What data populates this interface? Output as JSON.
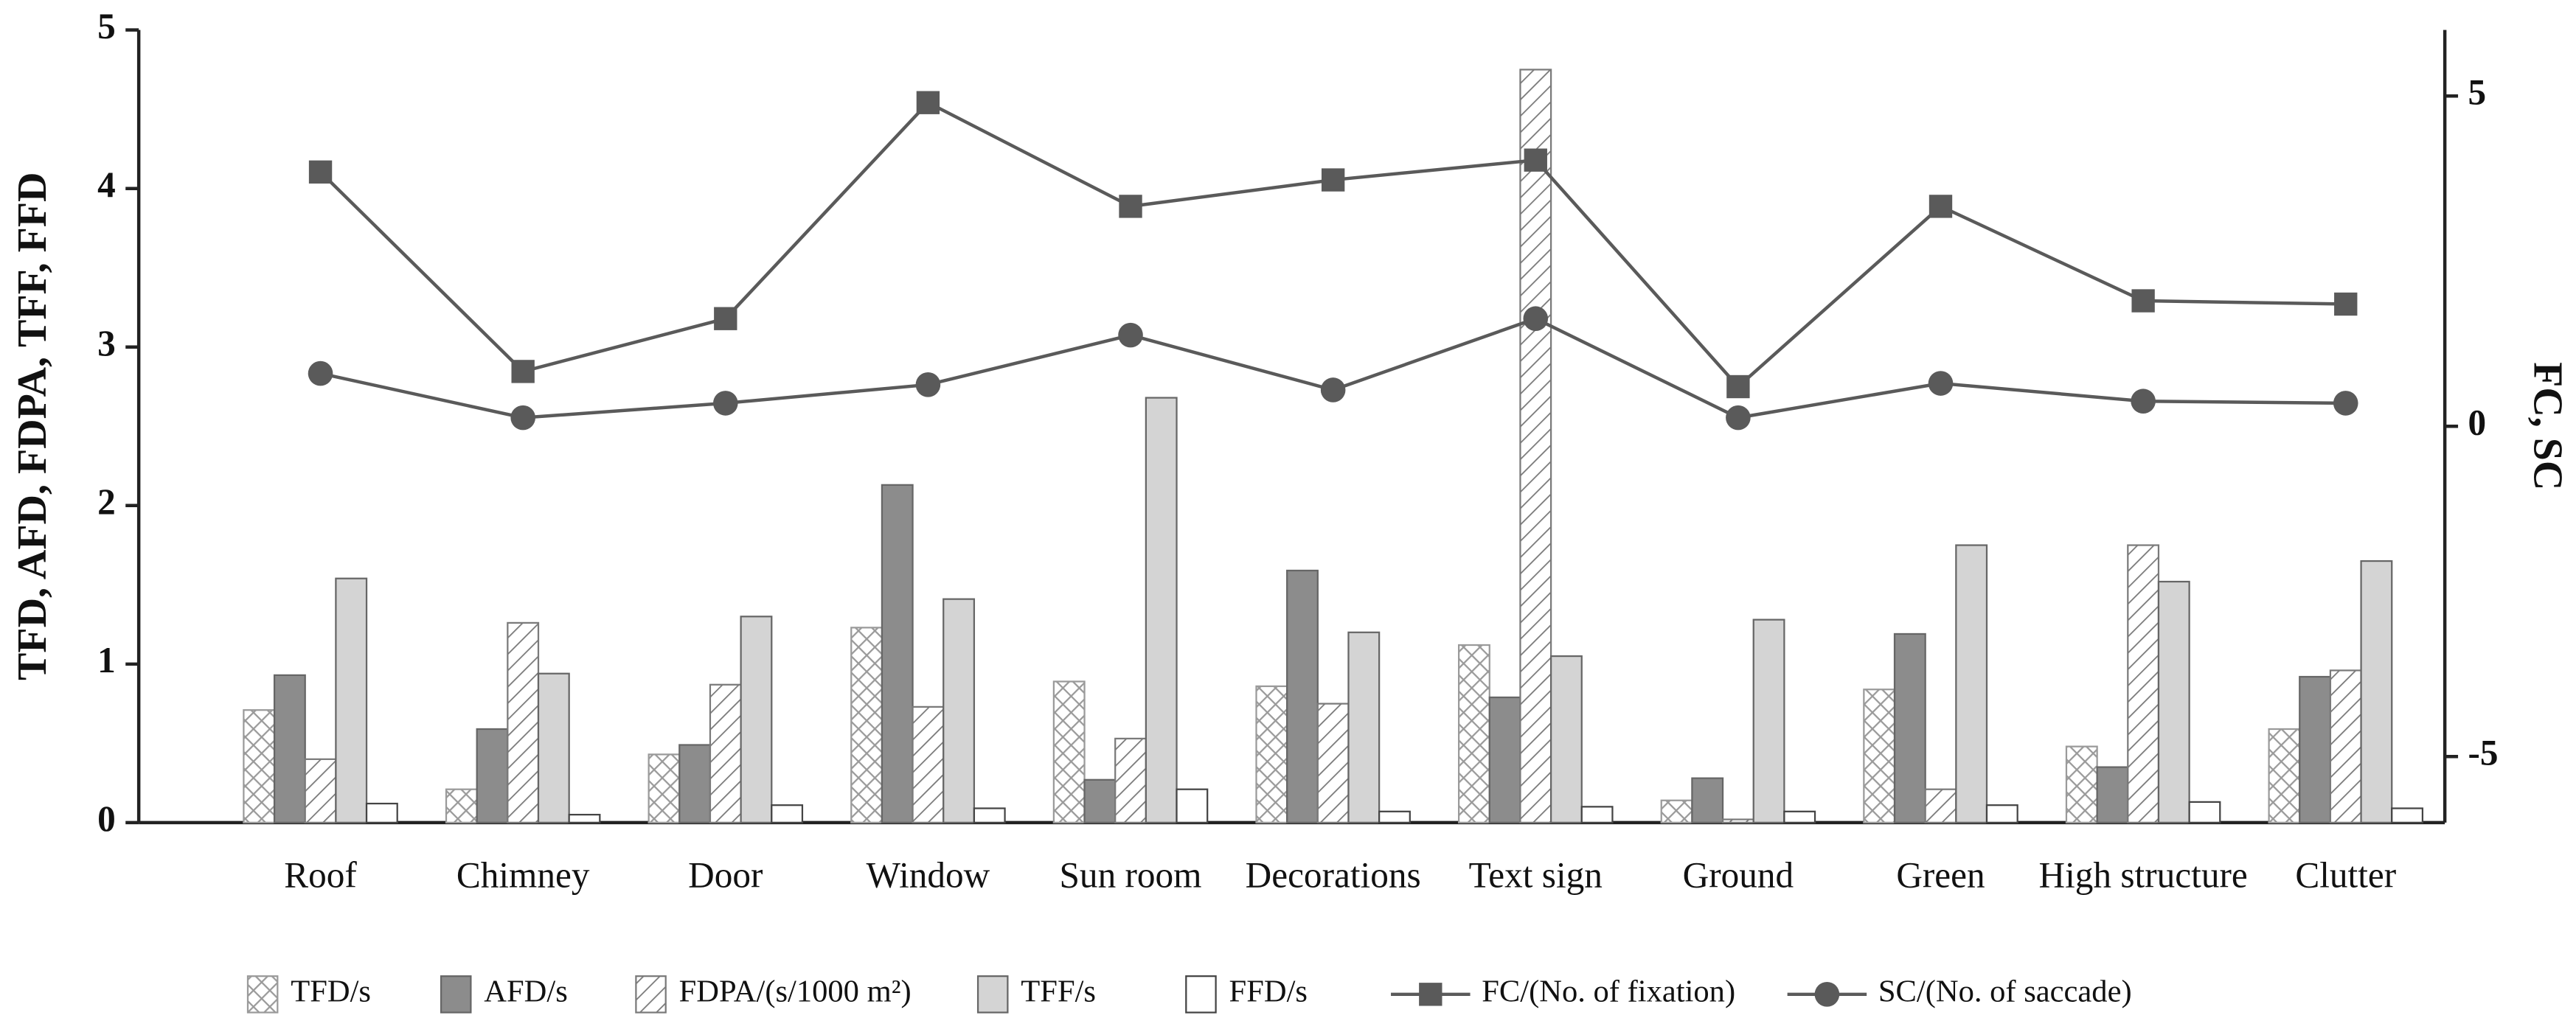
{
  "chart_data": {
    "type": "bar",
    "categories": [
      "Roof",
      "Chimney",
      "Door",
      "Window",
      "Sun room",
      "Decorations",
      "Text sign",
      "Ground",
      "Green",
      "High structure",
      "Clutter"
    ],
    "ylabel": "TFD, AFD, FDPA, TFF, FFD",
    "y2label": "FC, SC",
    "ylim": [
      0,
      5
    ],
    "yticks": [
      0,
      1,
      2,
      3,
      4,
      5
    ],
    "y2lim": [
      -6,
      6
    ],
    "y2ticks": [
      -5,
      0,
      5
    ],
    "legend": "bottom",
    "series": [
      {
        "name": "TFD/s",
        "color": "#9a9a9a",
        "pattern": "crosshatch",
        "values": [
          0.71,
          0.21,
          0.43,
          1.23,
          0.89,
          0.86,
          1.12,
          0.14,
          0.84,
          0.48,
          0.59
        ]
      },
      {
        "name": "AFD/s",
        "color": "#8c8c8c",
        "pattern": "solid",
        "values": [
          0.93,
          0.59,
          0.49,
          2.13,
          0.27,
          1.59,
          0.79,
          0.28,
          1.19,
          0.35,
          0.92
        ]
      },
      {
        "name": "FDPA/(s/1000 m²)",
        "color": "#7a7a7a",
        "pattern": "hatch",
        "values": [
          0.4,
          1.26,
          0.87,
          0.73,
          0.53,
          0.75,
          4.75,
          0.02,
          0.21,
          1.75,
          0.96
        ]
      },
      {
        "name": "TFF/s",
        "color": "#d4d4d4",
        "pattern": "solid",
        "values": [
          1.54,
          0.94,
          1.3,
          1.41,
          2.68,
          1.2,
          1.05,
          1.28,
          1.75,
          1.52,
          1.65
        ]
      },
      {
        "name": "FFD/s",
        "color": "#ffffff",
        "pattern": "solid",
        "values": [
          0.12,
          0.05,
          0.11,
          0.09,
          0.21,
          0.07,
          0.1,
          0.07,
          0.11,
          0.13,
          0.09
        ]
      },
      {
        "name": "FC/(No. of fixation)",
        "type": "line",
        "axis": "y2",
        "marker": "square",
        "color": "#5a5a5a",
        "values": [
          3.85,
          0.83,
          1.63,
          4.9,
          3.33,
          3.73,
          4.03,
          0.6,
          3.33,
          1.9,
          1.85
        ]
      },
      {
        "name": "SC/(No. of saccade)",
        "type": "line",
        "axis": "y2",
        "marker": "circle",
        "color": "#5a5a5a",
        "values": [
          0.8,
          0.13,
          0.35,
          0.63,
          1.38,
          0.55,
          1.63,
          0.13,
          0.65,
          0.38,
          0.35
        ]
      }
    ]
  }
}
